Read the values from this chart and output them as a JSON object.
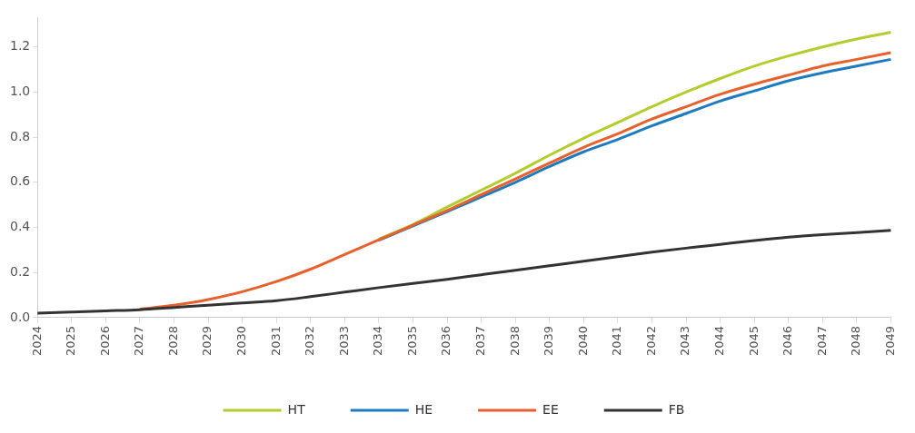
{
  "chart_data": {
    "type": "line",
    "categories": [
      "2024",
      "2025",
      "2026",
      "2027",
      "2028",
      "2029",
      "2030",
      "2031",
      "2032",
      "2033",
      "2034",
      "2035",
      "2036",
      "2037",
      "2038",
      "2039",
      "2040",
      "2041",
      "2042",
      "2043",
      "2044",
      "2045",
      "2046",
      "2047",
      "2048",
      "2049"
    ],
    "series": [
      {
        "name": "HT",
        "color": "#b5cc2e",
        "values": [
          null,
          null,
          null,
          null,
          null,
          null,
          null,
          null,
          null,
          null,
          0.348,
          0.413,
          0.49,
          0.565,
          0.64,
          0.72,
          0.795,
          0.865,
          0.935,
          1.0,
          1.06,
          1.115,
          1.16,
          1.2,
          1.235,
          1.265
        ]
      },
      {
        "name": "HE",
        "color": "#1f7bbf",
        "values": [
          null,
          null,
          null,
          null,
          null,
          null,
          null,
          null,
          null,
          null,
          0.343,
          0.407,
          0.47,
          0.535,
          0.6,
          0.67,
          0.735,
          0.79,
          0.85,
          0.905,
          0.96,
          1.005,
          1.05,
          1.085,
          1.115,
          1.145
        ]
      },
      {
        "name": "EE",
        "color": "#e8612c",
        "values": [
          null,
          null,
          null,
          0.038,
          0.055,
          0.08,
          0.115,
          0.16,
          0.215,
          0.28,
          0.345,
          0.41,
          0.475,
          0.545,
          0.615,
          0.685,
          0.755,
          0.815,
          0.88,
          0.935,
          0.99,
          1.035,
          1.075,
          1.115,
          1.145,
          1.175
        ]
      },
      {
        "name": "FB",
        "color": "#333333",
        "values": [
          0.02,
          0.025,
          0.03,
          0.035,
          0.045,
          0.055,
          0.065,
          0.075,
          0.093,
          0.113,
          0.133,
          0.152,
          0.17,
          0.19,
          0.21,
          0.23,
          0.25,
          0.27,
          0.29,
          0.308,
          0.325,
          0.342,
          0.357,
          0.368,
          0.377,
          0.387
        ]
      }
    ],
    "ylim": [
      0,
      1.33
    ],
    "yticks": [
      {
        "value": 0,
        "label": "0.0"
      },
      0.2,
      0.4,
      0.6,
      0.8,
      {
        "value": 1,
        "label": "1.0"
      },
      1.2
    ],
    "grid": false,
    "legend": "bottom",
    "marker": "none",
    "line_style": "solid"
  }
}
